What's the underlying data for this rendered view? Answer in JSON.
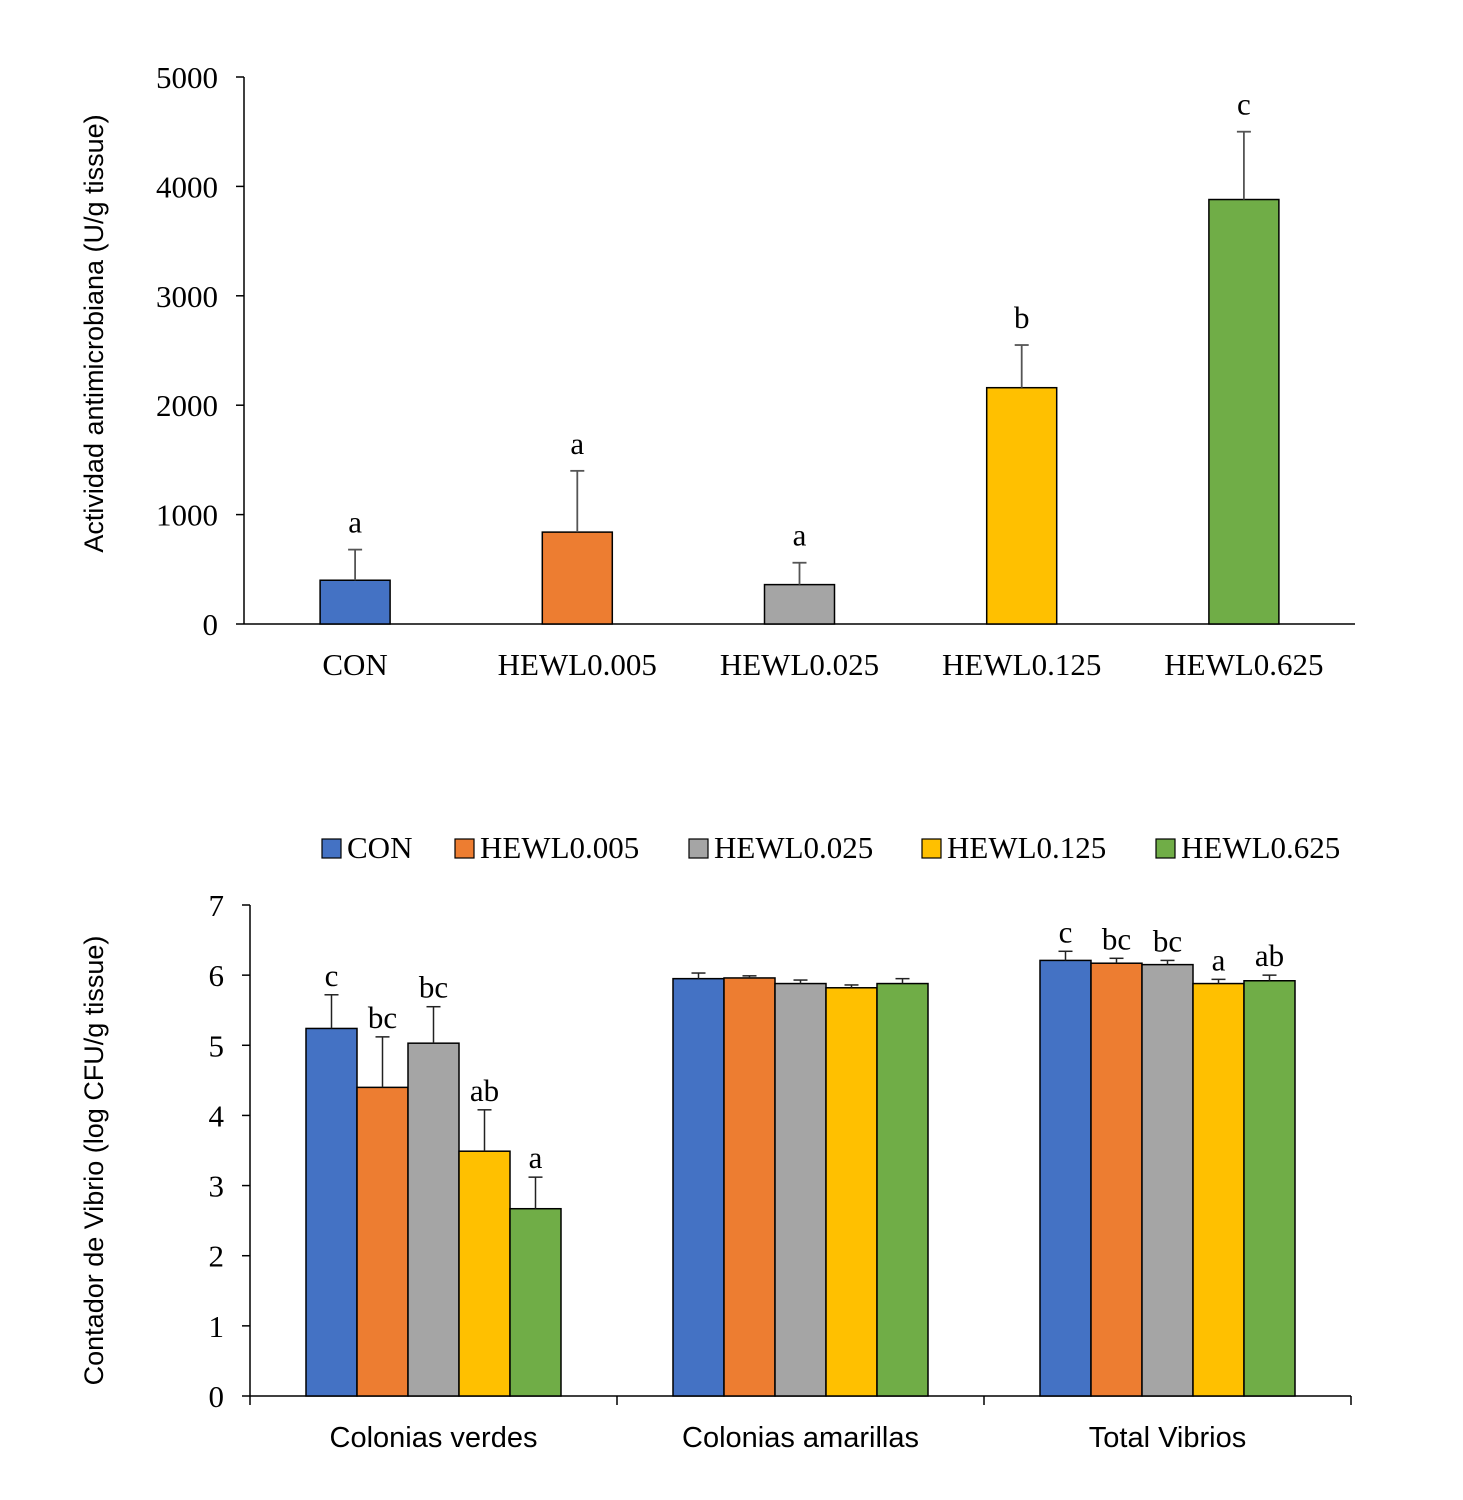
{
  "chart_data": [
    {
      "type": "bar",
      "ylabel": "Actividad antimicrobiana (U/g tissue)",
      "ylim": [
        0,
        5000
      ],
      "yticks": [
        0,
        1000,
        2000,
        3000,
        4000,
        5000
      ],
      "categories": [
        "CON",
        "HEWL0.005",
        "HEWL0.025",
        "HEWL0.125",
        "HEWL0.625"
      ],
      "values": [
        400,
        840,
        360,
        2160,
        3880
      ],
      "errors": [
        280,
        560,
        200,
        390,
        620
      ],
      "letters": [
        "a",
        "a",
        "a",
        "b",
        "c"
      ],
      "colors": [
        "#4472C4",
        "#ED7D31",
        "#A5A5A5",
        "#FFC000",
        "#70AD47"
      ]
    },
    {
      "type": "bar",
      "ylabel": "Contador de Vibrio (log CFU/g tissue)",
      "ylim": [
        0,
        7
      ],
      "yticks": [
        0,
        1,
        2,
        3,
        4,
        5,
        6,
        7
      ],
      "categories": [
        "Colonias verdes",
        "Colonias amarillas",
        "Total Vibrios"
      ],
      "legend_position": "top",
      "series": [
        {
          "name": "CON",
          "color": "#4472C4",
          "values": [
            5.24,
            5.95,
            6.21
          ],
          "errors": [
            0.48,
            0.08,
            0.13
          ],
          "letters": [
            "c",
            "",
            "c"
          ]
        },
        {
          "name": "HEWL0.005",
          "color": "#ED7D31",
          "values": [
            4.4,
            5.96,
            6.17
          ],
          "errors": [
            0.72,
            0.03,
            0.07
          ],
          "letters": [
            "bc",
            "",
            "bc"
          ]
        },
        {
          "name": "HEWL0.025",
          "color": "#A5A5A5",
          "values": [
            5.03,
            5.88,
            6.15
          ],
          "errors": [
            0.52,
            0.05,
            0.06
          ],
          "letters": [
            "bc",
            "",
            "bc"
          ]
        },
        {
          "name": "HEWL0.125",
          "color": "#FFC000",
          "values": [
            3.49,
            5.82,
            5.88
          ],
          "errors": [
            0.59,
            0.04,
            0.06
          ],
          "letters": [
            "ab",
            "",
            "a"
          ]
        },
        {
          "name": "HEWL0.625",
          "color": "#70AD47",
          "values": [
            2.67,
            5.88,
            5.92
          ],
          "errors": [
            0.45,
            0.07,
            0.08
          ],
          "letters": [
            "a",
            "",
            "ab"
          ]
        }
      ]
    }
  ]
}
